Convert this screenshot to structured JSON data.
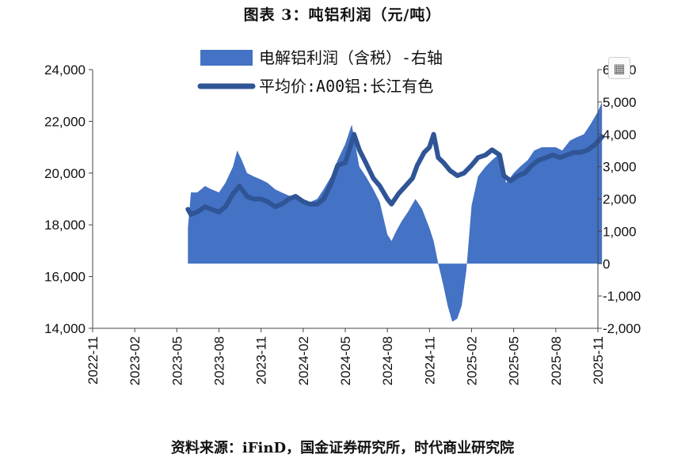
{
  "title": "图表 3：吨铝利润（元/吨）",
  "source": "资料来源：iFinD，国金证券研究所，时代商业研究院",
  "icons": {
    "corner": "table-view-icon",
    "corner_glyph": "▦"
  },
  "colors": {
    "area": "#4472C4",
    "line": "#2F5597",
    "axis": "#444444"
  },
  "chart_data": {
    "type": "line",
    "title": "",
    "xlabel": "",
    "ylabel": "",
    "grid": false,
    "legend_position": "top",
    "x_ticks": [
      "2022-11",
      "2023-02",
      "2023-05",
      "2023-08",
      "2023-11",
      "2024-02",
      "2024-05",
      "2024-08",
      "2024-11",
      "2025-02",
      "2025-05",
      "2025-08",
      "2025-11"
    ],
    "left_axis": {
      "ylim": [
        14000,
        24000
      ],
      "ticks": [
        "14,000",
        "16,000",
        "18,000",
        "20,000",
        "22,000",
        "24,000"
      ]
    },
    "right_axis": {
      "ylim": [
        -2000,
        6000
      ],
      "ticks": [
        "-2,000",
        "-1,000",
        "0",
        "1,000",
        "2,000",
        "3,000",
        "4,000",
        "5,000",
        "6,000"
      ]
    },
    "series": [
      {
        "name": "电解铝利润（含税）-右轴",
        "type": "area",
        "axis": "right",
        "points": [
          [
            "2023-05-25",
            1100
          ],
          [
            "2023-06-01",
            2200
          ],
          [
            "2023-06-15",
            2200
          ],
          [
            "2023-07-01",
            2400
          ],
          [
            "2023-07-15",
            2300
          ],
          [
            "2023-08-01",
            2200
          ],
          [
            "2023-08-15",
            2500
          ],
          [
            "2023-09-01",
            3000
          ],
          [
            "2023-09-10",
            3500
          ],
          [
            "2023-09-20",
            3200
          ],
          [
            "2023-10-01",
            2800
          ],
          [
            "2023-10-15",
            2700
          ],
          [
            "2023-11-01",
            2600
          ],
          [
            "2023-11-15",
            2500
          ],
          [
            "2023-12-01",
            2300
          ],
          [
            "2023-12-15",
            2200
          ],
          [
            "2024-01-01",
            2100
          ],
          [
            "2024-01-15",
            2100
          ],
          [
            "2024-02-01",
            2000
          ],
          [
            "2024-02-15",
            1900
          ],
          [
            "2024-03-01",
            2000
          ],
          [
            "2024-03-15",
            2300
          ],
          [
            "2024-04-01",
            2700
          ],
          [
            "2024-04-15",
            3200
          ],
          [
            "2024-05-01",
            3700
          ],
          [
            "2024-05-15",
            4300
          ],
          [
            "2024-05-25",
            3500
          ],
          [
            "2024-06-01",
            3000
          ],
          [
            "2024-06-15",
            2700
          ],
          [
            "2024-07-01",
            2300
          ],
          [
            "2024-07-15",
            1900
          ],
          [
            "2024-08-01",
            900
          ],
          [
            "2024-08-10",
            700
          ],
          [
            "2024-08-20",
            1000
          ],
          [
            "2024-09-01",
            1300
          ],
          [
            "2024-09-15",
            1600
          ],
          [
            "2024-10-01",
            2000
          ],
          [
            "2024-10-15",
            1700
          ],
          [
            "2024-11-01",
            1100
          ],
          [
            "2024-11-10",
            700
          ],
          [
            "2024-11-20",
            0
          ],
          [
            "2024-12-01",
            -700
          ],
          [
            "2024-12-10",
            -1300
          ],
          [
            "2024-12-20",
            -1800
          ],
          [
            "2024-12-31",
            -1700
          ],
          [
            "2025-01-10",
            -1300
          ],
          [
            "2025-01-20",
            -200
          ],
          [
            "2025-02-01",
            1800
          ],
          [
            "2025-02-15",
            2700
          ],
          [
            "2025-03-01",
            3000
          ],
          [
            "2025-03-15",
            3200
          ],
          [
            "2025-04-01",
            3400
          ],
          [
            "2025-04-15",
            2500
          ],
          [
            "2025-05-01",
            2800
          ],
          [
            "2025-05-15",
            3000
          ],
          [
            "2025-06-01",
            3200
          ],
          [
            "2025-06-15",
            3500
          ],
          [
            "2025-07-01",
            3600
          ],
          [
            "2025-07-15",
            3600
          ],
          [
            "2025-08-01",
            3600
          ],
          [
            "2025-08-15",
            3500
          ],
          [
            "2025-09-01",
            3800
          ],
          [
            "2025-09-15",
            3900
          ],
          [
            "2025-10-01",
            4000
          ],
          [
            "2025-10-15",
            4300
          ],
          [
            "2025-11-01",
            4700
          ],
          [
            "2025-11-10",
            5000
          ]
        ]
      },
      {
        "name": "平均价:A00铝:长江有色",
        "type": "line",
        "axis": "left",
        "points": [
          [
            "2023-05-25",
            18600
          ],
          [
            "2023-06-01",
            18400
          ],
          [
            "2023-06-15",
            18500
          ],
          [
            "2023-07-01",
            18700
          ],
          [
            "2023-07-15",
            18600
          ],
          [
            "2023-08-01",
            18500
          ],
          [
            "2023-08-15",
            18700
          ],
          [
            "2023-09-01",
            19200
          ],
          [
            "2023-09-15",
            19500
          ],
          [
            "2023-10-01",
            19100
          ],
          [
            "2023-10-15",
            19000
          ],
          [
            "2023-11-01",
            19000
          ],
          [
            "2023-11-15",
            18900
          ],
          [
            "2023-12-01",
            18700
          ],
          [
            "2023-12-15",
            18800
          ],
          [
            "2024-01-01",
            19000
          ],
          [
            "2024-01-15",
            19100
          ],
          [
            "2024-02-01",
            18900
          ],
          [
            "2024-02-15",
            18800
          ],
          [
            "2024-03-01",
            18800
          ],
          [
            "2024-03-15",
            19000
          ],
          [
            "2024-04-01",
            19600
          ],
          [
            "2024-04-15",
            20300
          ],
          [
            "2024-05-01",
            20400
          ],
          [
            "2024-05-20",
            21500
          ],
          [
            "2024-06-01",
            20900
          ],
          [
            "2024-06-15",
            20400
          ],
          [
            "2024-07-01",
            19800
          ],
          [
            "2024-07-15",
            19500
          ],
          [
            "2024-08-01",
            19000
          ],
          [
            "2024-08-10",
            18800
          ],
          [
            "2024-08-25",
            19200
          ],
          [
            "2024-09-10",
            19500
          ],
          [
            "2024-09-25",
            19800
          ],
          [
            "2024-10-05",
            20300
          ],
          [
            "2024-10-20",
            20800
          ],
          [
            "2024-11-01",
            21000
          ],
          [
            "2024-11-10",
            21500
          ],
          [
            "2024-11-20",
            20600
          ],
          [
            "2024-12-01",
            20400
          ],
          [
            "2024-12-15",
            20100
          ],
          [
            "2024-12-31",
            19900
          ],
          [
            "2025-01-15",
            20000
          ],
          [
            "2025-02-01",
            20300
          ],
          [
            "2025-02-15",
            20600
          ],
          [
            "2025-03-01",
            20700
          ],
          [
            "2025-03-15",
            20900
          ],
          [
            "2025-04-01",
            20700
          ],
          [
            "2025-04-10",
            19900
          ],
          [
            "2025-04-25",
            19700
          ],
          [
            "2025-05-10",
            19900
          ],
          [
            "2025-05-25",
            20000
          ],
          [
            "2025-06-10",
            20300
          ],
          [
            "2025-06-25",
            20500
          ],
          [
            "2025-07-10",
            20600
          ],
          [
            "2025-07-25",
            20700
          ],
          [
            "2025-08-10",
            20600
          ],
          [
            "2025-08-25",
            20700
          ],
          [
            "2025-09-10",
            20800
          ],
          [
            "2025-09-25",
            20800
          ],
          [
            "2025-10-10",
            20900
          ],
          [
            "2025-10-25",
            21100
          ],
          [
            "2025-11-05",
            21300
          ],
          [
            "2025-11-10",
            21400
          ]
        ]
      }
    ]
  }
}
